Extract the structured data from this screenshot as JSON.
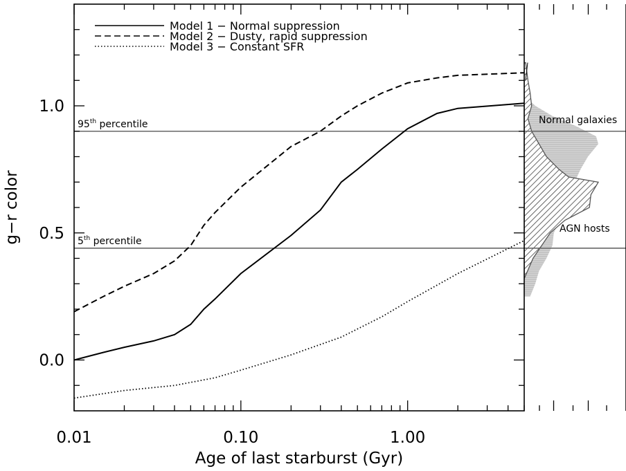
{
  "chart_data": {
    "type": "line",
    "xlabel": "Age of last starburst (Gyr)",
    "ylabel": "g−r color",
    "x_scale": "log",
    "xlim": [
      0.01,
      5.0
    ],
    "ylim": [
      -0.2,
      1.4
    ],
    "xtick_labels": [
      "0.01",
      "0.10",
      "1.00"
    ],
    "xtick_values": [
      0.01,
      0.1,
      1.0
    ],
    "ytick_labels": [
      "0.0",
      "0.5",
      "1.0"
    ],
    "ytick_values": [
      0.0,
      0.5,
      1.0
    ],
    "legend_position": "top-left",
    "series": [
      {
        "name": "Model 1 − Normal suppression",
        "style": "solid",
        "x": [
          0.01,
          0.015,
          0.02,
          0.03,
          0.04,
          0.05,
          0.06,
          0.07,
          0.1,
          0.2,
          0.3,
          0.4,
          0.5,
          0.7,
          1.0,
          1.5,
          2.0,
          5.0
        ],
        "y": [
          0.0,
          0.03,
          0.05,
          0.075,
          0.1,
          0.14,
          0.2,
          0.24,
          0.34,
          0.49,
          0.59,
          0.7,
          0.75,
          0.83,
          0.91,
          0.97,
          0.99,
          1.01
        ]
      },
      {
        "name": "Model 2 − Dusty, rapid suppression",
        "style": "dashed",
        "x": [
          0.01,
          0.015,
          0.02,
          0.03,
          0.04,
          0.05,
          0.06,
          0.07,
          0.1,
          0.2,
          0.3,
          0.4,
          0.5,
          0.7,
          1.0,
          1.5,
          2.0,
          5.0
        ],
        "y": [
          0.19,
          0.25,
          0.29,
          0.34,
          0.39,
          0.45,
          0.53,
          0.58,
          0.68,
          0.84,
          0.9,
          0.96,
          1.0,
          1.05,
          1.09,
          1.11,
          1.12,
          1.13
        ]
      },
      {
        "name": "Model 3 − Constant SFR",
        "style": "dotted",
        "x": [
          0.01,
          0.02,
          0.04,
          0.07,
          0.1,
          0.2,
          0.4,
          0.7,
          1.0,
          2.0,
          5.0
        ],
        "y": [
          -0.15,
          -0.12,
          -0.1,
          -0.07,
          -0.04,
          0.02,
          0.09,
          0.17,
          0.23,
          0.34,
          0.47
        ]
      }
    ],
    "reference_lines": [
      {
        "label_base": "95",
        "label_sup": "th",
        "label_rest": " percentile",
        "y": 0.9
      },
      {
        "label_base": "5",
        "label_sup": "th",
        "label_rest": " percentile",
        "y": 0.44
      }
    ],
    "histograms": [
      {
        "name": "Normal galaxies",
        "fill": "solid-gray",
        "color": "#b8b8b8",
        "y": [
          0.25,
          0.3,
          0.35,
          0.4,
          0.45,
          0.5,
          0.55,
          0.6,
          0.65,
          0.7,
          0.75,
          0.8,
          0.85,
          0.88,
          0.92,
          0.96,
          1.0,
          1.03
        ],
        "counts": [
          0.08,
          0.15,
          0.2,
          0.3,
          0.38,
          0.4,
          0.48,
          0.52,
          0.57,
          0.68,
          0.76,
          0.86,
          1.0,
          0.97,
          0.7,
          0.38,
          0.15,
          0.04
        ]
      },
      {
        "name": "AGN hosts",
        "fill": "hatched",
        "color": "#555555",
        "y": [
          0.32,
          0.4,
          0.5,
          0.55,
          0.6,
          0.65,
          0.7,
          0.72,
          0.75,
          0.8,
          0.85,
          0.9,
          0.95,
          1.0,
          1.05,
          1.1,
          1.17
        ],
        "counts": [
          0.0,
          0.12,
          0.35,
          0.55,
          0.88,
          0.9,
          1.0,
          0.6,
          0.47,
          0.3,
          0.2,
          0.1,
          0.05,
          0.1,
          0.08,
          0.05,
          0.02
        ]
      }
    ]
  }
}
